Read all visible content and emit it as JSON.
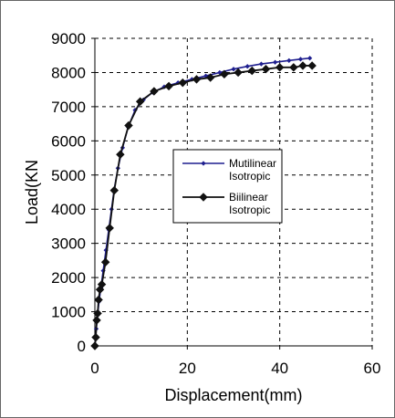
{
  "chart_data": {
    "type": "line",
    "title": "",
    "xlabel": "Displacement(mm)",
    "ylabel": "Load(KN",
    "xlim": [
      0,
      60
    ],
    "ylim": [
      0,
      9000
    ],
    "x_ticks": [
      0,
      20,
      40,
      60
    ],
    "y_ticks": [
      0,
      1000,
      2000,
      3000,
      4000,
      5000,
      6000,
      7000,
      8000,
      9000
    ],
    "grid": "dashed",
    "legend_position": "center-right",
    "series": [
      {
        "name": "Mutilinear Isotropic",
        "color": "#1f1f8f",
        "marker": "small-diamond",
        "points": [
          [
            0,
            0
          ],
          [
            0.3,
            500
          ],
          [
            0.6,
            900
          ],
          [
            0.9,
            1300
          ],
          [
            1.3,
            1700
          ],
          [
            1.8,
            2200
          ],
          [
            2.4,
            2800
          ],
          [
            3.0,
            3400
          ],
          [
            3.6,
            4000
          ],
          [
            4.2,
            4600
          ],
          [
            5.0,
            5200
          ],
          [
            6.0,
            5800
          ],
          [
            7.2,
            6400
          ],
          [
            8.7,
            6900
          ],
          [
            10.5,
            7200
          ],
          [
            12.5,
            7420
          ],
          [
            15.0,
            7580
          ],
          [
            18.0,
            7700
          ],
          [
            21.0,
            7800
          ],
          [
            24.0,
            7900
          ],
          [
            27.0,
            8000
          ],
          [
            30.0,
            8100
          ],
          [
            33.0,
            8180
          ],
          [
            36.0,
            8250
          ],
          [
            39.0,
            8300
          ],
          [
            42.0,
            8350
          ],
          [
            44.5,
            8390
          ],
          [
            46.5,
            8420
          ]
        ]
      },
      {
        "name": "Biilinear Isotropic",
        "color": "#111111",
        "marker": "large-diamond",
        "points": [
          [
            0,
            0
          ],
          [
            0.2,
            250
          ],
          [
            0.4,
            750
          ],
          [
            0.6,
            950
          ],
          [
            0.8,
            1350
          ],
          [
            1.1,
            1650
          ],
          [
            1.5,
            1800
          ],
          [
            2.3,
            2450
          ],
          [
            3.2,
            3450
          ],
          [
            4.2,
            4550
          ],
          [
            5.5,
            5600
          ],
          [
            7.3,
            6450
          ],
          [
            9.8,
            7150
          ],
          [
            12.8,
            7450
          ],
          [
            16.0,
            7600
          ],
          [
            19.0,
            7700
          ],
          [
            22.0,
            7800
          ],
          [
            25.0,
            7850
          ],
          [
            28.0,
            7950
          ],
          [
            31.0,
            8000
          ],
          [
            34.0,
            8050
          ],
          [
            37.0,
            8100
          ],
          [
            40.0,
            8150
          ],
          [
            43.0,
            8150
          ],
          [
            45.0,
            8200
          ],
          [
            47.0,
            8200
          ]
        ]
      }
    ],
    "legend": {
      "entries": [
        {
          "line1": "Mutilinear",
          "line2": "Isotropic"
        },
        {
          "line1": "Biilinear",
          "line2": "Isotropic"
        }
      ]
    }
  }
}
